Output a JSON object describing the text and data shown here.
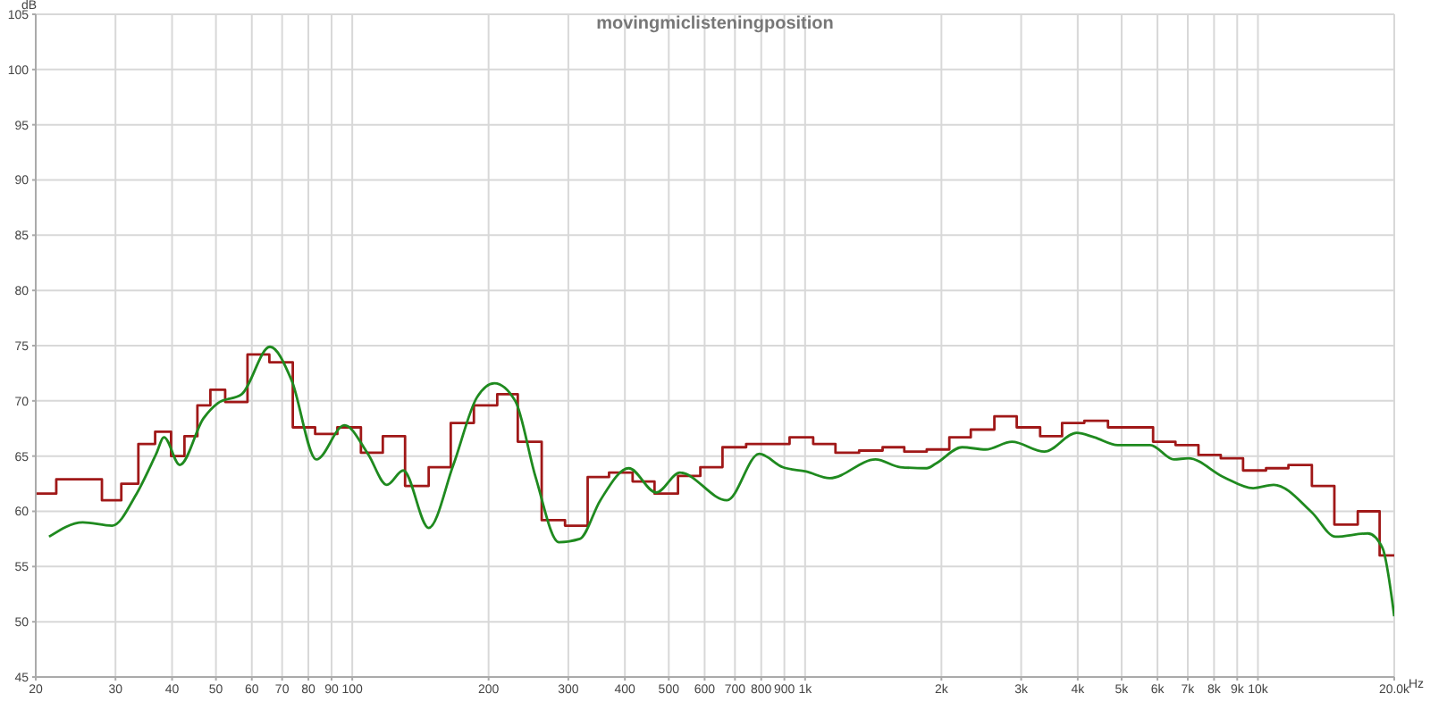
{
  "chart_data": {
    "type": "line",
    "title": "movingmiclisteningposition",
    "xlabel": "Hz",
    "ylabel": "dB",
    "log": "x",
    "grid": true,
    "xlim": [
      20,
      20000
    ],
    "xticks": [
      20,
      30,
      40,
      50,
      60,
      70,
      80,
      90,
      100,
      200,
      300,
      400,
      500,
      600,
      700,
      800,
      900,
      {
        "value": 1000,
        "label": "1k"
      },
      {
        "value": 2000,
        "label": "2k"
      },
      {
        "value": 3000,
        "label": "3k"
      },
      {
        "value": 4000,
        "label": "4k"
      },
      {
        "value": 5000,
        "label": "5k"
      },
      {
        "value": 6000,
        "label": "6k"
      },
      {
        "value": 7000,
        "label": "7k"
      },
      {
        "value": 8000,
        "label": "8k"
      },
      {
        "value": 9000,
        "label": "9k"
      },
      {
        "value": 10000,
        "label": "10k"
      },
      {
        "value": 20000,
        "label": "20.0k"
      }
    ],
    "ylim": [
      45,
      105
    ],
    "yticks": [
      45,
      50,
      55,
      60,
      65,
      70,
      75,
      80,
      85,
      90,
      95,
      100,
      105
    ],
    "series": [
      {
        "type": "step",
        "color": "#a01818",
        "x": [
          20,
          22.2,
          28,
          30.9,
          33.7,
          36.7,
          39.8,
          42.6,
          45.5,
          48.6,
          52.4,
          58.7,
          65.6,
          73.9,
          82.8,
          92.7,
          104.5,
          116.8,
          130.8,
          147.5,
          165,
          185.6,
          209,
          232,
          262,
          295,
          331,
          369,
          416,
          465,
          524,
          587,
          657,
          741,
          924,
          1042,
          1167,
          1316,
          1483,
          1656,
          1856,
          2082,
          2322,
          2618,
          2933,
          3304,
          3694,
          4137,
          4665,
          5868,
          6575,
          7390,
          8279,
          9272,
          10422,
          11678,
          13156,
          14750,
          16614,
          18568,
          20000
        ],
        "values": [
          61.6,
          62.9,
          61.0,
          62.5,
          66.1,
          67.2,
          65.0,
          66.8,
          69.6,
          71.0,
          69.9,
          74.2,
          73.5,
          67.6,
          67.0,
          67.6,
          65.3,
          66.8,
          62.3,
          64.0,
          68.0,
          69.6,
          70.6,
          66.3,
          59.2,
          58.7,
          63.1,
          63.5,
          62.7,
          61.6,
          63.2,
          64.0,
          65.8,
          66.1,
          66.7,
          66.1,
          65.3,
          65.5,
          65.8,
          65.4,
          65.6,
          66.7,
          67.4,
          68.6,
          67.6,
          66.8,
          68.0,
          68.2,
          67.6,
          66.3,
          66.0,
          65.1,
          64.8,
          63.7,
          63.9,
          64.2,
          62.3,
          58.8,
          60.0,
          56.0,
          56.0
        ]
      },
      {
        "color": "#1f8a1f",
        "x": [
          21.4,
          25.4,
          29.5,
          33.3,
          36.9,
          38.4,
          41.6,
          46.9,
          50.5,
          57,
          65.8,
          73.4,
          83.3,
          96.1,
          108.3,
          119.2,
          129.6,
          147.5,
          167.2,
          188.4,
          206,
          229,
          254,
          286,
          318,
          353,
          408,
          469,
          529,
          672,
          792,
          892,
          1005,
          1133,
          1431,
          1623,
          1856,
          1941,
          2222,
          2503,
          2863,
          3377,
          3978,
          4352,
          4904,
          5783,
          6521,
          7022,
          8400,
          9758,
          10835,
          13156,
          14838,
          17488,
          18834,
          20000
        ],
        "values": [
          57.7,
          59.0,
          58.7,
          61.5,
          65.2,
          66.7,
          64.2,
          68.4,
          69.8,
          70.6,
          74.9,
          71.9,
          64.7,
          67.8,
          65.2,
          62.4,
          63.7,
          58.5,
          64.2,
          70.3,
          71.6,
          70.0,
          63.1,
          57.2,
          57.5,
          61.0,
          63.9,
          61.7,
          63.5,
          61.0,
          65.2,
          64.0,
          63.6,
          63.0,
          64.7,
          64.0,
          63.9,
          64.3,
          65.8,
          65.6,
          66.3,
          65.4,
          67.1,
          66.7,
          66.0,
          66.0,
          64.7,
          64.8,
          63.1,
          62.1,
          62.4,
          59.9,
          57.7,
          58.0,
          56.7,
          50.5
        ]
      }
    ]
  }
}
